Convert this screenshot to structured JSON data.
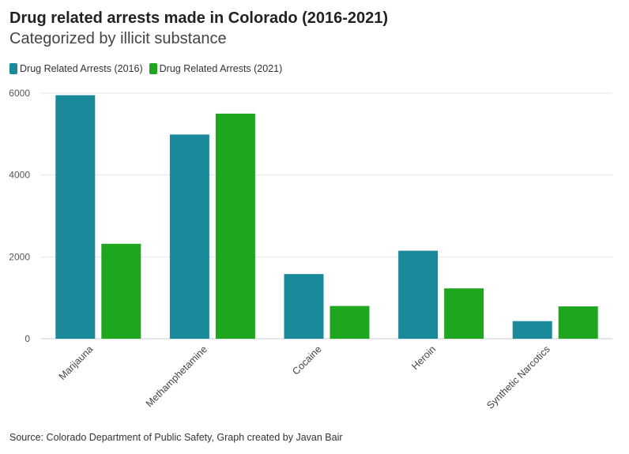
{
  "chart_data": {
    "type": "bar",
    "title": "Drug related arrests made in Colorado (2016-2021)",
    "subtitle": "Categorized by illicit substance",
    "categories": [
      "Marijauna",
      "Methamphetamine",
      "Cocaine",
      "Heroin",
      "Synthetic Narcotics"
    ],
    "series": [
      {
        "name": "Drug Related Arrests (2016)",
        "color": "#1a8a9a",
        "values": [
          5950,
          4990,
          1580,
          2150,
          430
        ]
      },
      {
        "name": "Drug Related Arrests (2021)",
        "color": "#1fa61f",
        "values": [
          2320,
          5500,
          800,
          1230,
          790
        ]
      }
    ],
    "yticks": [
      0,
      2000,
      4000,
      6000
    ],
    "ylim": [
      0,
      6000
    ],
    "xlabel": "",
    "ylabel": "",
    "legend_position": "top-left",
    "source": "Source: Colorado Department of Public Safety, Graph created by Javan Bair"
  }
}
